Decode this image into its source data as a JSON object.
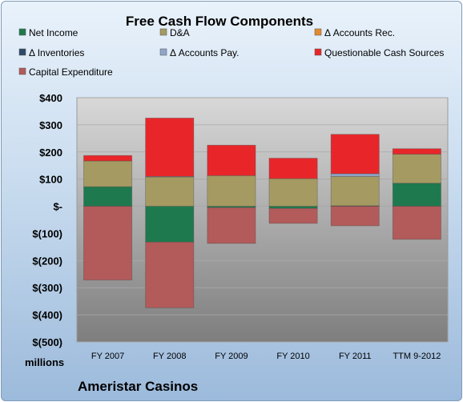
{
  "chart_data": {
    "type": "bar",
    "stacked": true,
    "title": "Free Cash Flow Components",
    "categories": [
      "FY 2007",
      "FY 2008",
      "FY 2009",
      "FY 2010",
      "FY 2011",
      "TTM 9-2012"
    ],
    "series": [
      {
        "name": "Net Income",
        "color": "#1e7a4e",
        "values": [
          72,
          -132,
          -5,
          -8,
          2,
          85
        ]
      },
      {
        "name": "D&A",
        "color": "#a59a62",
        "values": [
          95,
          108,
          113,
          102,
          108,
          107
        ]
      },
      {
        "name": "Δ Accounts Rec.",
        "color": "#e08a30",
        "values": [
          0,
          0,
          0,
          0,
          0,
          0
        ]
      },
      {
        "name": "Δ Inventories",
        "color": "#2f4a66",
        "values": [
          0,
          0,
          0,
          0,
          0,
          0
        ]
      },
      {
        "name": "Δ Accounts Pay.",
        "color": "#8fa6c8",
        "values": [
          0,
          2,
          0,
          0,
          10,
          0
        ]
      },
      {
        "name": "Questionable Cash Sources",
        "color": "#e8262a",
        "values": [
          20,
          215,
          112,
          75,
          145,
          20
        ]
      },
      {
        "name": "Capital Expenditure",
        "color": "#b35a5a",
        "values": [
          -272,
          -242,
          -132,
          -55,
          -72,
          -122
        ]
      }
    ],
    "ylim": [
      -500,
      400
    ],
    "yticks": [
      400,
      300,
      200,
      100,
      0,
      -100,
      -200,
      -300,
      -400,
      -500
    ],
    "ytick_labels": [
      "$400",
      "$300",
      "$200",
      "$100",
      "$-",
      "$(100)",
      "$(200)",
      "$(300)",
      "$(400)",
      "$(500)"
    ],
    "unit_label": "millions",
    "legend_position": "top",
    "company": "Ameristar Casinos"
  }
}
